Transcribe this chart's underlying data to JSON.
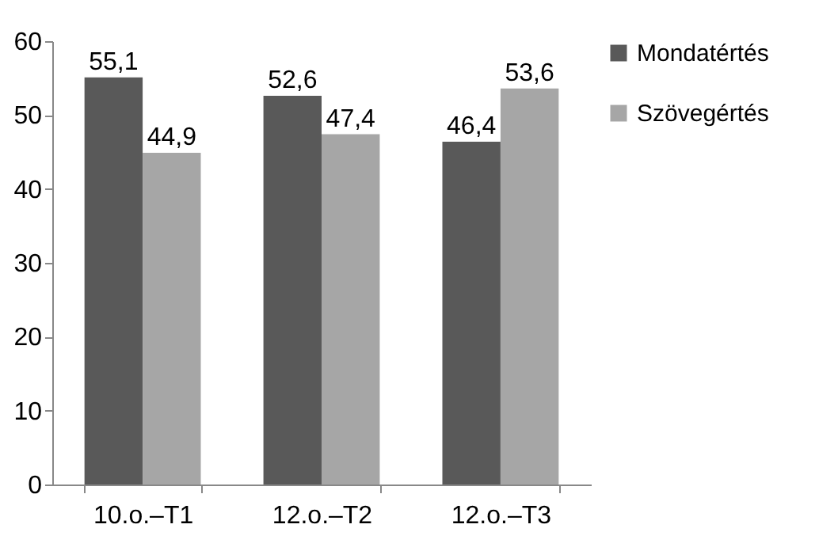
{
  "chart_data": {
    "type": "bar",
    "categories": [
      "10.o.–T1",
      "12.o.–T2",
      "12.o.–T3"
    ],
    "series": [
      {
        "name": "Mondatértés",
        "color": "#595959",
        "values": [
          55.1,
          52.6,
          46.4
        ],
        "value_labels": [
          "55,1",
          "52,6",
          "46,4"
        ]
      },
      {
        "name": "Szövegértés",
        "color": "#a6a6a6",
        "values": [
          44.9,
          47.4,
          53.6
        ],
        "value_labels": [
          "44,9",
          "47,4",
          "53,6"
        ]
      }
    ],
    "ylim": [
      0,
      60
    ],
    "yticks": [
      0,
      10,
      20,
      30,
      40,
      50,
      60
    ],
    "grid": false,
    "legend": "right"
  }
}
